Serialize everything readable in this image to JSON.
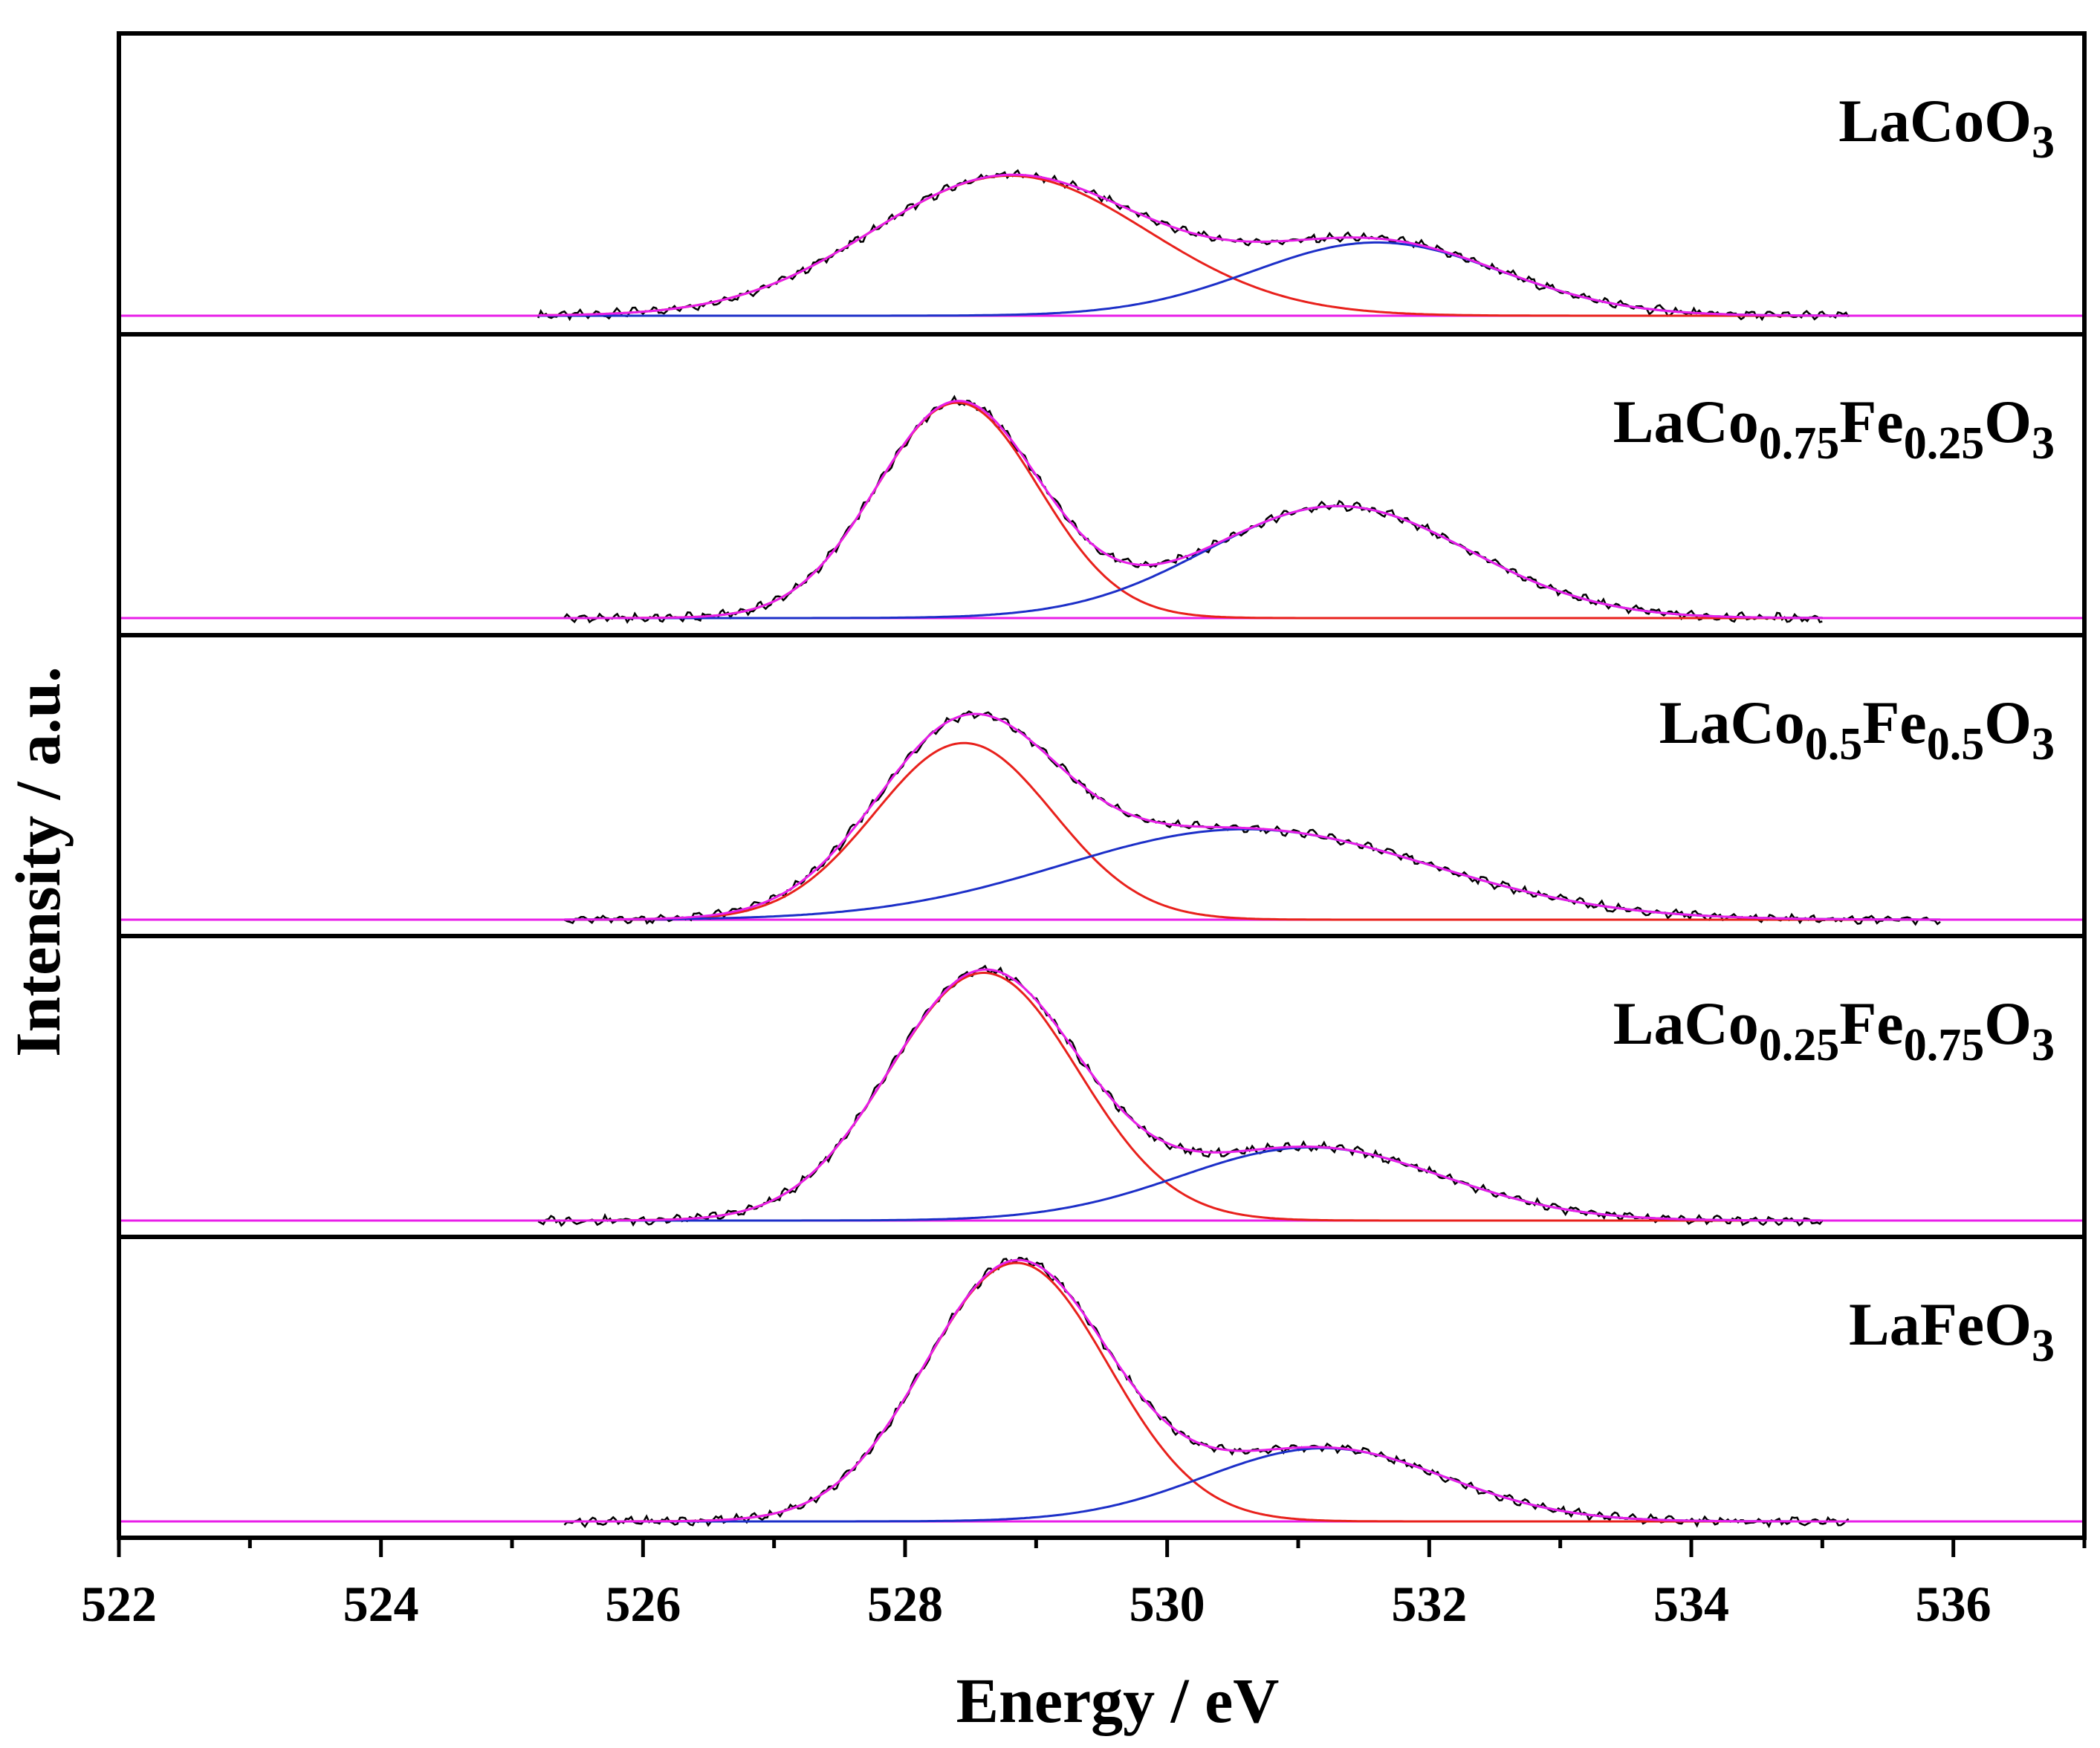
{
  "chart_data": {
    "type": "line",
    "title": "",
    "xlabel": "Energy / eV",
    "ylabel": "Intensity / a.u.",
    "xlim": [
      522,
      537
    ],
    "x_ticks": [
      522,
      524,
      526,
      528,
      530,
      532,
      534,
      536
    ],
    "x_tick_labels": [
      "522",
      "524",
      "526",
      "528",
      "530",
      "532",
      "534",
      "536"
    ],
    "series_colors": {
      "raw": "#000000",
      "peak1": "#e8211c",
      "peak2": "#1c2fc8",
      "envelope": "#e81ee8",
      "baseline": "#e81ee8"
    },
    "panels": [
      {
        "label": {
          "base": "LaCo",
          "sub1": "",
          "mid": "O",
          "sub2": "3",
          "full": "LaCoO3"
        },
        "range": [
          525.2,
          535.2
        ],
        "peak1": {
          "center": 528.8,
          "height": 0.65,
          "sigma": 1.05
        },
        "peak2": {
          "center": 531.6,
          "height": 0.34,
          "sigma": 0.95
        }
      },
      {
        "label": {
          "base": "LaCo",
          "sub1": "0.75",
          "mid": "Fe",
          "sub2": "0.25",
          "tail": "O",
          "sub3": "3",
          "full": "LaCo0.75Fe0.25O3"
        },
        "range": [
          525.4,
          535.0
        ],
        "peak1": {
          "center": 528.4,
          "height": 1.0,
          "sigma": 0.62
        },
        "peak2": {
          "center": 531.3,
          "height": 0.52,
          "sigma": 1.0
        }
      },
      {
        "label": {
          "base": "LaCo",
          "sub1": "0.5",
          "mid": "Fe",
          "sub2": "0.5",
          "tail": "O",
          "sub3": "3",
          "full": "LaCo0.5Fe0.5O3"
        },
        "range": [
          525.4,
          535.9
        ],
        "peak1": {
          "center": 528.45,
          "height": 0.82,
          "sigma": 0.68
        },
        "peak2": {
          "center": 530.6,
          "height": 0.42,
          "sigma": 1.4
        }
      },
      {
        "label": {
          "base": "LaCo",
          "sub1": "0.25",
          "mid": "Fe",
          "sub2": "0.75",
          "tail": "O",
          "sub3": "3",
          "full": "LaCo0.25Fe0.75O3"
        },
        "range": [
          525.2,
          535.0
        ],
        "peak1": {
          "center": 528.6,
          "height": 1.15,
          "sigma": 0.72
        },
        "peak2": {
          "center": 531.1,
          "height": 0.34,
          "sigma": 1.0
        }
      },
      {
        "label": {
          "base": "LaFe",
          "sub1": "",
          "mid": "O",
          "sub2": "3",
          "full": "LaFeO3"
        },
        "range": [
          525.4,
          535.2
        ],
        "peak1": {
          "center": 528.85,
          "height": 1.2,
          "sigma": 0.7
        },
        "peak2": {
          "center": 531.2,
          "height": 0.34,
          "sigma": 0.92
        }
      }
    ]
  }
}
